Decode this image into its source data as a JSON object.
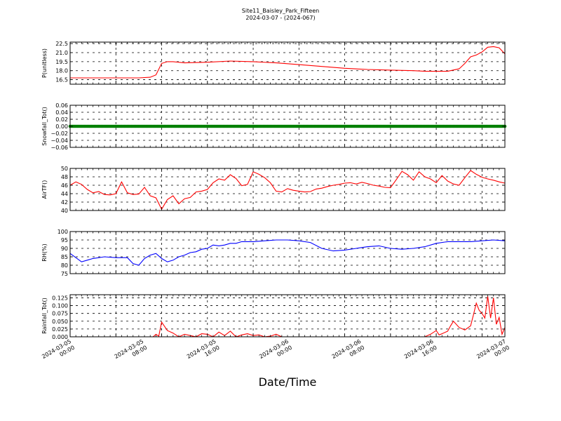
{
  "title": [
    "Site11_Baisley_Park_Fifteen",
    "2024-03-07 - (2024-067)"
  ],
  "xlabel": "Date/Time",
  "x_ticks": [
    "2024-03-05\n00:00",
    "2024-03-05\n08:00",
    "2024-03-05\n16:00",
    "2024-03-06\n00:00",
    "2024-03-06\n08:00",
    "2024-03-06\n16:00",
    "2024-03-07\n00:00"
  ],
  "chart_data": [
    {
      "type": "line",
      "ylabel": "P(unitless)",
      "ylim": [
        15.75,
        22.75
      ],
      "yticks": [
        16.5,
        18.0,
        19.5,
        21.0,
        22.5
      ],
      "ytick_labels": [
        "16.5",
        "18.0",
        "19.5",
        "21.0",
        "22.5"
      ],
      "grid": true,
      "color": "#ff0000",
      "x": [
        0,
        4,
        8,
        12,
        14,
        15,
        16,
        17,
        18,
        20,
        24,
        28,
        32,
        36,
        40,
        44,
        48,
        52,
        56,
        60,
        62,
        64,
        66,
        68,
        69,
        70,
        71,
        72,
        73,
        74,
        75,
        76
      ],
      "y": [
        16.8,
        16.8,
        16.8,
        16.8,
        16.9,
        17.3,
        19.2,
        19.5,
        19.5,
        19.3,
        19.4,
        19.6,
        19.5,
        19.3,
        19.0,
        18.7,
        18.4,
        18.2,
        18.1,
        18.0,
        17.9,
        17.9,
        17.9,
        18.3,
        19.2,
        20.3,
        20.6,
        21.1,
        21.9,
        22.0,
        21.8,
        20.8
      ]
    },
    {
      "type": "scatter",
      "ylabel": "Snowfall_Tot()",
      "ylim": [
        -0.06,
        0.06
      ],
      "yticks": [
        -0.06,
        -0.04,
        -0.02,
        0.0,
        0.02,
        0.04,
        0.06
      ],
      "ytick_labels": [
        "−0.06",
        "−0.04",
        "−0.02",
        "0.00",
        "0.02",
        "0.04",
        "0.06"
      ],
      "grid": true,
      "color": "#008000",
      "x_range": [
        0,
        76
      ],
      "constant_value": 0.0
    },
    {
      "type": "line",
      "ylabel": "AirTF()",
      "ylim": [
        40,
        50
      ],
      "yticks": [
        40,
        42,
        44,
        46,
        48,
        50
      ],
      "ytick_labels": [
        "40",
        "42",
        "44",
        "46",
        "48",
        "50"
      ],
      "grid": true,
      "color": "#ff0000",
      "x": [
        0,
        1,
        2,
        3,
        4,
        5,
        6,
        7,
        8,
        9,
        10,
        11,
        12,
        13,
        14,
        15,
        16,
        17,
        18,
        19,
        20,
        21,
        22,
        23,
        24,
        25,
        26,
        27,
        28,
        29,
        30,
        31,
        32,
        33,
        34,
        35,
        36,
        37,
        38,
        39,
        40,
        41,
        42,
        43,
        44,
        45,
        46,
        47,
        48,
        49,
        50,
        51,
        52,
        53,
        54,
        55,
        56,
        57,
        58,
        59,
        60,
        61,
        62,
        63,
        64,
        65,
        66,
        67,
        68,
        69,
        70,
        71,
        72,
        73,
        74,
        75,
        76
      ],
      "y": [
        46,
        46.8,
        46.2,
        45,
        44.2,
        44.5,
        43.8,
        43.7,
        44,
        46.8,
        44.2,
        43.8,
        43.9,
        45.5,
        43.5,
        43,
        40.3,
        42.6,
        43.5,
        41.6,
        42.8,
        43.1,
        44.4,
        44.6,
        45,
        46.6,
        47.5,
        47.2,
        48.5,
        47.6,
        45.9,
        46.2,
        49.2,
        48.6,
        47.8,
        46.6,
        44.6,
        44.4,
        45.2,
        44.8,
        44.6,
        44.4,
        44.5,
        45.1,
        45.3,
        45.7,
        46.0,
        46.2,
        46.5,
        46.6,
        46.3,
        46.7,
        46.4,
        46.0,
        45.8,
        45.5,
        45.4,
        47.3,
        49.3,
        48.5,
        47.2,
        49.2,
        48.0,
        47.5,
        46.6,
        48.3,
        47.0,
        46.3,
        46.0,
        47.8,
        49.5,
        48.6,
        47.9,
        47.5,
        47.2,
        46.8,
        46.5
      ]
    },
    {
      "type": "line",
      "ylabel": "RH(%)",
      "ylim": [
        75,
        100
      ],
      "yticks": [
        75,
        80,
        85,
        90,
        95,
        100
      ],
      "ytick_labels": [
        "75",
        "80",
        "85",
        "90",
        "95",
        "100"
      ],
      "grid": true,
      "color": "#0000ff",
      "x": [
        0,
        2,
        4,
        6,
        8,
        10,
        11,
        12,
        13,
        14,
        15,
        16,
        17,
        18,
        19,
        20,
        21,
        22,
        23,
        24,
        25,
        26,
        27,
        28,
        29,
        30,
        32,
        34,
        36,
        38,
        40,
        42,
        44,
        46,
        48,
        50,
        52,
        54,
        56,
        58,
        60,
        62,
        64,
        66,
        68,
        70,
        72,
        74,
        76
      ],
      "y": [
        87,
        82,
        84,
        85,
        84.5,
        84.5,
        81,
        80,
        84,
        86,
        87,
        84,
        82,
        83,
        85,
        86,
        87.5,
        88,
        89.5,
        90,
        92,
        91.5,
        92,
        93,
        93,
        94,
        94,
        94.5,
        95,
        95,
        94.5,
        93.5,
        90,
        88.5,
        89,
        90,
        91,
        91.5,
        90,
        89.5,
        90,
        91,
        93,
        94,
        94,
        94,
        94.5,
        95,
        94.5
      ]
    },
    {
      "type": "line",
      "ylabel": "Rainfall_Tot()",
      "ylim": [
        0,
        0.135
      ],
      "yticks": [
        0.0,
        0.025,
        0.05,
        0.075,
        0.1,
        0.125
      ],
      "ytick_labels": [
        "0.000",
        "0.025",
        "0.050",
        "0.075",
        "0.100",
        "0.125"
      ],
      "grid": true,
      "color": "#ff0000",
      "x": [
        0,
        12,
        14.5,
        15,
        15.5,
        16,
        17,
        18,
        19,
        20,
        21,
        22,
        23,
        24,
        25,
        26,
        27,
        28,
        29,
        30,
        31,
        32,
        33,
        34,
        35,
        36,
        37,
        38,
        39,
        40,
        48,
        56,
        62,
        63,
        64,
        64.5,
        65,
        66,
        66.5,
        67,
        68,
        69,
        70,
        70.5,
        71,
        71.5,
        72,
        72.5,
        73,
        73.5,
        74,
        74.5,
        75,
        75.5,
        76
      ],
      "y": [
        0,
        0,
        0,
        0.008,
        0.002,
        0.047,
        0.02,
        0.012,
        0,
        0.008,
        0.004,
        0,
        0.01,
        0.008,
        0,
        0.015,
        0.004,
        0.018,
        0,
        0.006,
        0.01,
        0.004,
        0.006,
        0,
        0.002,
        0.008,
        0,
        0,
        0,
        0,
        0,
        0,
        0,
        0.008,
        0.02,
        0.006,
        0.01,
        0.018,
        0.035,
        0.05,
        0.03,
        0.022,
        0.035,
        0.07,
        0.108,
        0.085,
        0.075,
        0.06,
        0.13,
        0.06,
        0.125,
        0.04,
        0.062,
        0.008,
        0.03
      ]
    }
  ]
}
